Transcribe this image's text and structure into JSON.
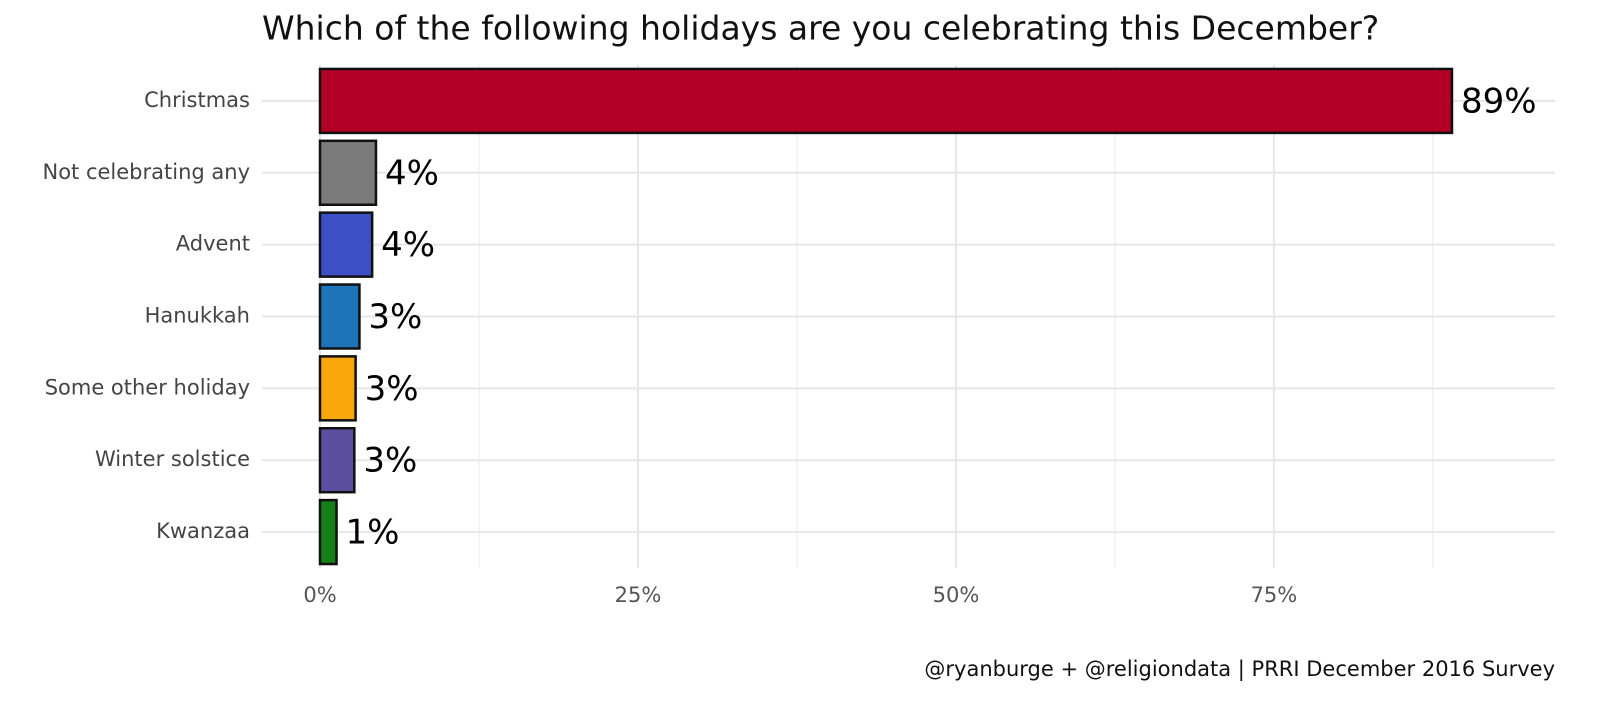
{
  "chart_data": {
    "type": "bar",
    "orientation": "horizontal",
    "title": "Which of the following holidays are you celebrating this December?",
    "caption": "@ryanburge + @religiondata | PRRI December 2016 Survey",
    "categories": [
      "Christmas",
      "Not celebrating any",
      "Advent",
      "Hanukkah",
      "Some other holiday",
      "Winter solstice",
      "Kwanzaa"
    ],
    "values": [
      89,
      4.4,
      4.1,
      3.1,
      2.8,
      2.7,
      1.3
    ],
    "value_labels": [
      "89%",
      "4%",
      "4%",
      "3%",
      "3%",
      "3%",
      "1%"
    ],
    "colors": [
      "#b20026",
      "#7b7b7b",
      "#3d4fc4",
      "#1f74b9",
      "#f9a60b",
      "#5d4f9f",
      "#15801a"
    ],
    "xlim": [
      -4.56,
      97.1
    ],
    "xticks": [
      {
        "value": 0,
        "label": "0%"
      },
      {
        "value": 25,
        "label": "25%"
      },
      {
        "value": 50,
        "label": "50%"
      },
      {
        "value": 75,
        "label": "75%"
      }
    ],
    "minor_xticks": [
      12.5,
      37.5,
      62.5,
      87.5
    ],
    "grid": true
  }
}
